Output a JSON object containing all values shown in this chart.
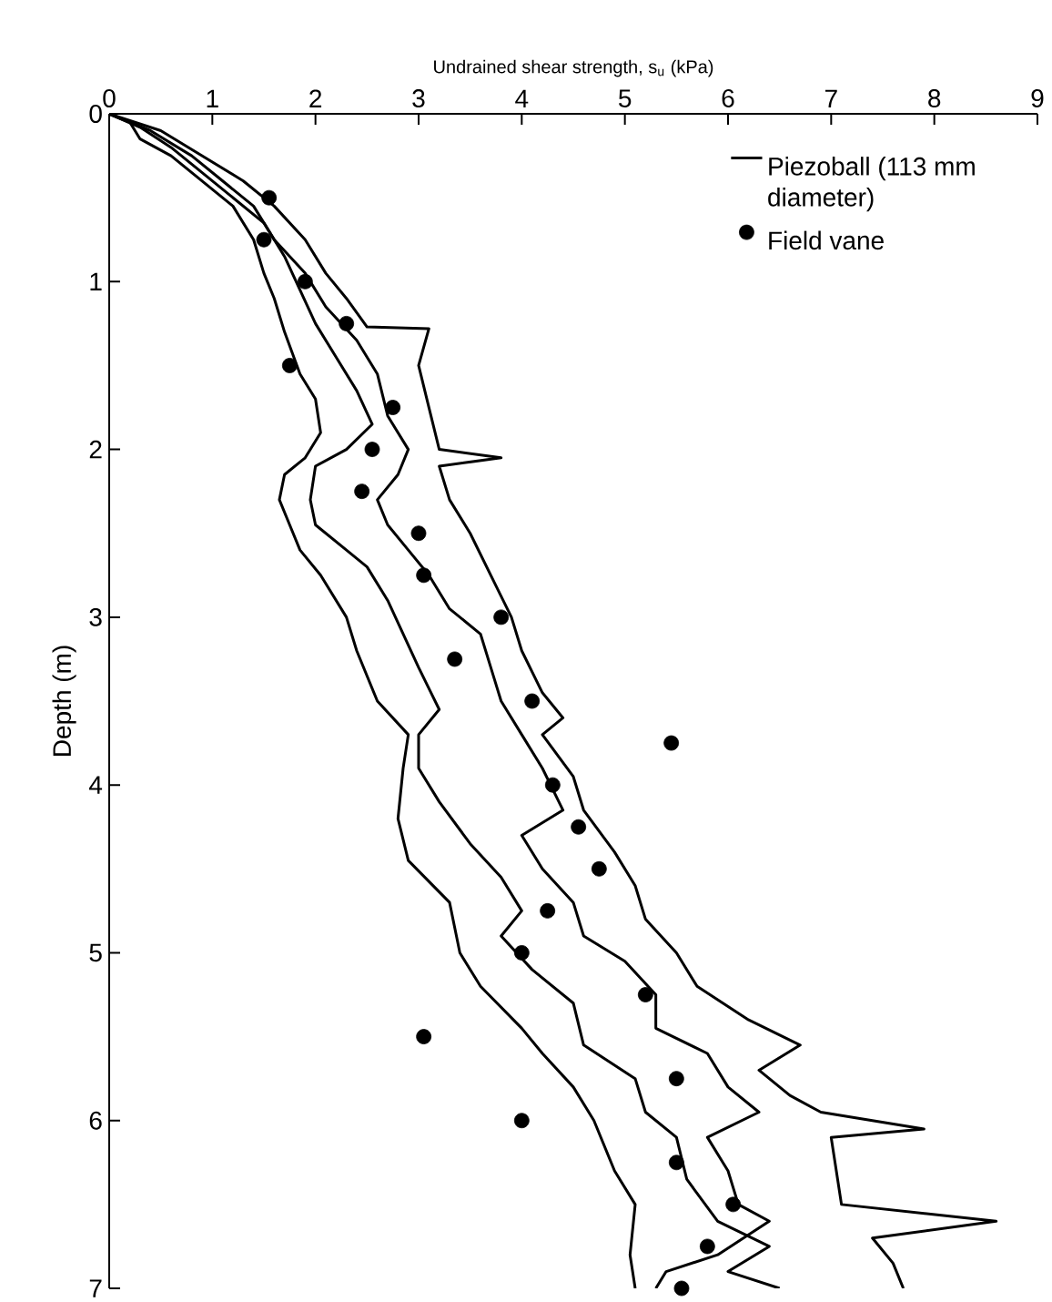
{
  "chart_data": {
    "type": "line",
    "xlabel": "Undrained shear strength, s$_{u}$ (kPa)",
    "ylabel": "Depth (m)",
    "xlim": [
      0,
      9
    ],
    "xticks": [
      0,
      1,
      2,
      3,
      4,
      5,
      6,
      7,
      8,
      9
    ],
    "ylim": [
      7,
      0
    ],
    "yticks": [
      0,
      1,
      2,
      3,
      4,
      5,
      6,
      7
    ],
    "legend": "top right",
    "series": [
      {
        "name": "Piezoball (113 mm diameter)",
        "color": "#000000",
        "marker": "none",
        "x": [
          0,
          0.2,
          0.3,
          0.6,
          0.9,
          1.2,
          1.4,
          1.5,
          1.6,
          1.7,
          1.85,
          2.0,
          2.05,
          1.9,
          1.7,
          1.65,
          1.75,
          1.85,
          2.05,
          2.3,
          2.4,
          2.6,
          2.9,
          2.85,
          2.8,
          2.9,
          3.3,
          3.4,
          3.6,
          4.0,
          4.2,
          4.5,
          4.7,
          4.9,
          5.1,
          5.05,
          5.1
        ],
        "values": [
          0,
          0.05,
          0.15,
          0.25,
          0.4,
          0.55,
          0.75,
          0.95,
          1.1,
          1.3,
          1.55,
          1.7,
          1.9,
          2.05,
          2.15,
          2.3,
          2.45,
          2.6,
          2.75,
          3.0,
          3.2,
          3.5,
          3.7,
          3.9,
          4.2,
          4.45,
          4.7,
          5.0,
          5.2,
          5.45,
          5.6,
          5.8,
          6.0,
          6.3,
          6.5,
          6.8,
          7.0
        ]
      },
      {
        "color": "#000000",
        "marker": "none",
        "x": [
          0,
          0.3,
          0.6,
          0.9,
          1.2,
          1.5,
          1.7,
          1.85,
          2.0,
          2.2,
          2.4,
          2.55,
          2.3,
          2.0,
          1.95,
          2.0,
          2.3,
          2.5,
          2.7,
          2.85,
          3.0,
          3.2,
          3.0,
          3.0,
          3.2,
          3.5,
          3.8,
          4.0,
          3.8,
          4.1,
          4.5,
          4.6,
          5.1,
          5.2,
          5.5,
          5.6,
          5.9,
          6.4,
          6.0,
          6.5
        ],
        "values": [
          0,
          0.08,
          0.2,
          0.35,
          0.5,
          0.65,
          0.85,
          1.05,
          1.25,
          1.45,
          1.65,
          1.85,
          2.0,
          2.1,
          2.3,
          2.45,
          2.6,
          2.7,
          2.9,
          3.1,
          3.3,
          3.55,
          3.7,
          3.9,
          4.1,
          4.35,
          4.55,
          4.75,
          4.9,
          5.1,
          5.3,
          5.55,
          5.75,
          5.95,
          6.1,
          6.35,
          6.6,
          6.75,
          6.9,
          7.0
        ]
      },
      {
        "color": "#000000",
        "marker": "none",
        "x": [
          0,
          0.4,
          0.8,
          1.1,
          1.4,
          1.6,
          1.9,
          2.1,
          2.4,
          2.6,
          2.7,
          2.9,
          2.8,
          2.6,
          2.7,
          2.9,
          3.1,
          3.3,
          3.6,
          3.7,
          3.8,
          4.0,
          4.2,
          4.4,
          4.0,
          4.2,
          4.5,
          4.6,
          5.0,
          5.3,
          5.3,
          5.8,
          6.0,
          6.3,
          5.8,
          6.0,
          6.1,
          6.4,
          5.9,
          5.4,
          5.3
        ],
        "values": [
          0,
          0.1,
          0.25,
          0.4,
          0.55,
          0.75,
          0.95,
          1.15,
          1.35,
          1.55,
          1.8,
          2.0,
          2.15,
          2.3,
          2.45,
          2.6,
          2.75,
          2.95,
          3.1,
          3.3,
          3.5,
          3.7,
          3.9,
          4.15,
          4.3,
          4.5,
          4.7,
          4.9,
          5.05,
          5.25,
          5.45,
          5.6,
          5.8,
          5.95,
          6.1,
          6.3,
          6.5,
          6.6,
          6.8,
          6.9,
          7.0
        ]
      },
      {
        "color": "#000000",
        "marker": "none",
        "x": [
          0,
          0.5,
          0.9,
          1.3,
          1.6,
          1.9,
          2.1,
          2.3,
          2.5,
          3.1,
          3.0,
          3.1,
          3.2,
          3.8,
          3.2,
          3.3,
          3.5,
          3.7,
          3.9,
          4.0,
          4.2,
          4.4,
          4.2,
          4.5,
          4.6,
          4.9,
          5.1,
          5.2,
          5.5,
          5.7,
          6.2,
          6.7,
          6.3,
          6.6,
          6.9,
          7.9,
          7.0,
          7.05,
          7.1,
          8.6,
          7.4,
          7.6,
          7.7
        ],
        "values": [
          0,
          0.1,
          0.25,
          0.4,
          0.55,
          0.75,
          0.95,
          1.1,
          1.27,
          1.28,
          1.5,
          1.75,
          2.0,
          2.05,
          2.1,
          2.3,
          2.5,
          2.75,
          3.0,
          3.2,
          3.45,
          3.6,
          3.7,
          3.95,
          4.15,
          4.4,
          4.6,
          4.8,
          5.0,
          5.2,
          5.4,
          5.55,
          5.7,
          5.85,
          5.95,
          6.05,
          6.1,
          6.3,
          6.5,
          6.6,
          6.7,
          6.85,
          7.0
        ]
      },
      {
        "name": "Field vane",
        "type": "scatter",
        "color": "#000000",
        "marker": "circle",
        "x": [
          1.55,
          1.5,
          1.9,
          2.3,
          1.75,
          2.75,
          2.55,
          2.45,
          3.0,
          3.05,
          3.8,
          3.35,
          4.1,
          5.45,
          4.3,
          4.55,
          4.75,
          4.25,
          4.0,
          5.2,
          3.05,
          5.5,
          4.0,
          5.5,
          6.05,
          5.8,
          5.55
        ],
        "values": [
          0.5,
          0.75,
          1.0,
          1.25,
          1.5,
          1.75,
          2.0,
          2.25,
          2.5,
          2.75,
          3.0,
          3.25,
          3.5,
          3.75,
          4.0,
          4.25,
          4.5,
          4.75,
          5.0,
          5.25,
          5.5,
          5.75,
          6.0,
          6.25,
          6.5,
          6.75,
          7.0
        ]
      }
    ]
  }
}
